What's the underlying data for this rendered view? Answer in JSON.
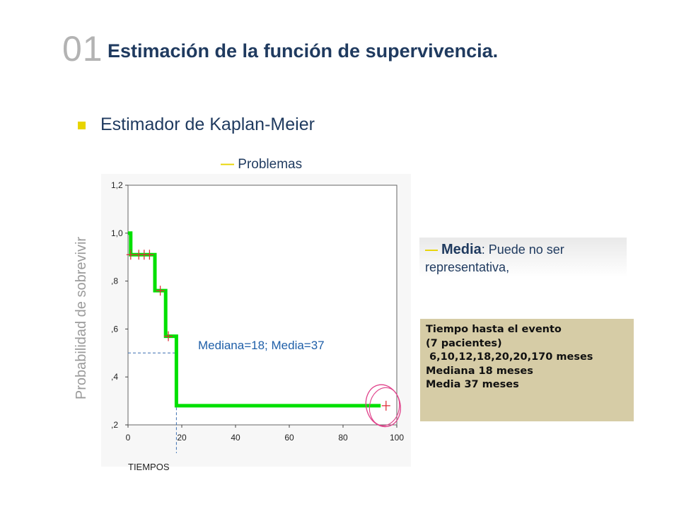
{
  "slide": {
    "number": "01",
    "title": "Estimación de la función de supervivencia.",
    "bullet": "Estimador de Kaplan-Meier",
    "problems_label": "Problemas",
    "media_note": {
      "label": "Media",
      "text_a": ": Puede no ser",
      "text_b": "representativa,"
    },
    "info_box": {
      "lines": [
        "Tiempo hasta el evento",
        "(7 pacientes)",
        " 6,10,12,18,20,20,170 meses",
        "",
        "Mediana 18 meses",
        "Media 37 meses"
      ]
    },
    "colors": {
      "title": "#1f3a5f",
      "accent": "#e8d400",
      "curve": "#00e000",
      "censor": "#e0303a",
      "circle": "#e0408a",
      "info_bg": "#d6cca6"
    }
  },
  "chart_data": {
    "type": "line",
    "step": true,
    "xlabel": "TIEMPOS",
    "ylabel": "Probabilidad de sobrevivir",
    "xlim": [
      0,
      100
    ],
    "ylim": [
      0.2,
      1.2
    ],
    "x_ticks": [
      0,
      20,
      40,
      60,
      80,
      100
    ],
    "y_ticks": [
      0.2,
      0.4,
      0.6,
      0.8,
      1.0,
      1.2
    ],
    "x_tick_labels": [
      "0",
      "20",
      "40",
      "60",
      "80",
      "100"
    ],
    "y_tick_labels": [
      ",2",
      ",4",
      ",6",
      ",8",
      "1,0",
      "1,2"
    ],
    "annotation": "Mediana=18; Media=37",
    "series": [
      {
        "points": [
          [
            0,
            1.0
          ],
          [
            1,
            1.0
          ],
          [
            1,
            0.91
          ],
          [
            10,
            0.91
          ],
          [
            10,
            0.76
          ],
          [
            14,
            0.76
          ],
          [
            14,
            0.57
          ],
          [
            18,
            0.57
          ],
          [
            18,
            0.28
          ],
          [
            94,
            0.28
          ]
        ]
      }
    ],
    "censored": [
      [
        1,
        0.91
      ],
      [
        4,
        0.91
      ],
      [
        6,
        0.91
      ],
      [
        8,
        0.91
      ],
      [
        12,
        0.76
      ],
      [
        15,
        0.57
      ],
      [
        96,
        0.28
      ]
    ],
    "median_reference": {
      "x": 18,
      "y": 0.5
    },
    "highlighted_censor": [
      96,
      0.28
    ]
  }
}
